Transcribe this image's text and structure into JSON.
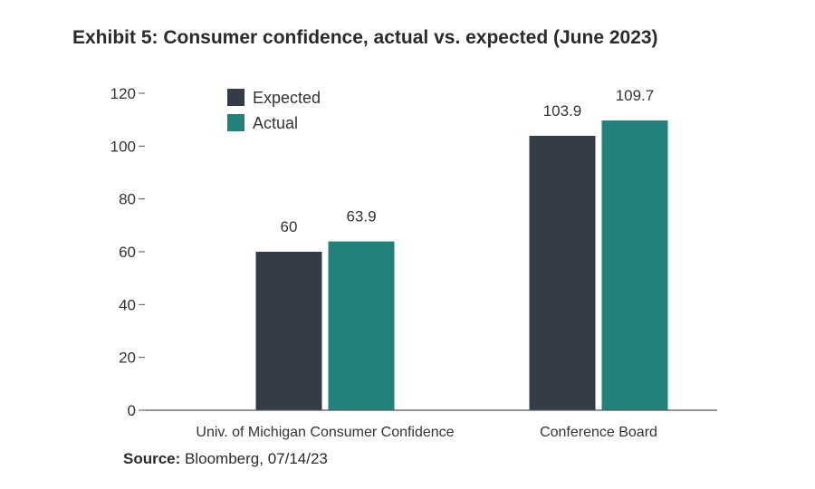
{
  "title": "Exhibit 5: Consumer confidence, actual vs. expected (June 2023)",
  "source": {
    "label": "Source:",
    "text": "Bloomberg, 07/14/23"
  },
  "colors": {
    "expected": "#343c47",
    "actual": "#22817b",
    "axis": "#555555"
  },
  "chart_data": {
    "type": "bar",
    "title": "Exhibit 5: Consumer confidence, actual vs. expected (June 2023)",
    "xlabel": "",
    "ylabel": "",
    "categories": [
      "Univ. of Michigan Consumer Confidence",
      "Conference Board"
    ],
    "series": [
      {
        "name": "Expected",
        "values": [
          60,
          103.9
        ],
        "labels": [
          "60",
          "103.9"
        ]
      },
      {
        "name": "Actual",
        "values": [
          63.9,
          109.7
        ],
        "labels": [
          "63.9",
          "109.7"
        ]
      }
    ],
    "ylim": [
      0,
      120
    ],
    "yticks": [
      "0",
      "20",
      "40",
      "60",
      "80",
      "100",
      "120"
    ],
    "grid": false,
    "legend": "top-left"
  }
}
